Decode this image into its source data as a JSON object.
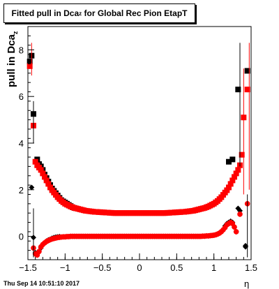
{
  "title": {
    "main": "Fitted pull in Dca",
    "sub": "z",
    "rest": " for Global Rec Pion EtapT"
  },
  "ylabel": {
    "main": "pull in Dca",
    "sub": "z"
  },
  "xlabel": "η",
  "footer": "Thu Sep 14 10:51:10 2017",
  "chart_data": {
    "type": "scatter",
    "xlim": [
      -1.5,
      1.5
    ],
    "ylim": [
      -1.0,
      9.0
    ],
    "xticks": [
      -1.5,
      -1,
      -0.5,
      0,
      0.5,
      1,
      1.5
    ],
    "xtick_labels": [
      "−1.5",
      "−1",
      "−0.5",
      "0",
      "0.5",
      "1",
      "1.5"
    ],
    "yticks": [
      0,
      2,
      4,
      6,
      8
    ],
    "ytick_labels": [
      "0",
      "2",
      "4",
      "6",
      "8"
    ],
    "grid": false,
    "series": [
      {
        "color": "#000000",
        "marker": "square",
        "points": [
          [
            -1.475,
            7.5
          ],
          [
            -1.45,
            7.75
          ],
          [
            -1.425,
            5.25
          ],
          [
            -1.375,
            3.3
          ],
          [
            -1.35,
            3.1
          ],
          [
            -1.325,
            3.0
          ],
          [
            -1.3,
            2.85
          ],
          [
            -1.275,
            2.65
          ],
          [
            -1.25,
            2.5
          ],
          [
            -1.225,
            2.35
          ],
          [
            -1.2,
            2.2
          ],
          [
            -1.175,
            2.05
          ],
          [
            -1.15,
            1.95
          ],
          [
            -1.125,
            1.85
          ],
          [
            -1.1,
            1.75
          ],
          [
            -1.075,
            1.65
          ],
          [
            -1.05,
            1.55
          ],
          [
            -1.025,
            1.5
          ],
          [
            -1.0,
            1.45
          ],
          [
            -0.975,
            1.4
          ],
          [
            -0.95,
            1.35
          ],
          [
            -0.925,
            1.3
          ],
          [
            -0.9,
            1.25
          ],
          [
            -0.875,
            1.22
          ],
          [
            -0.85,
            1.2
          ],
          [
            1.2,
            3.2
          ],
          [
            1.25,
            3.3
          ],
          [
            1.325,
            6.3
          ],
          [
            1.45,
            7.1
          ]
        ]
      },
      {
        "color": "#000000",
        "marker": "diamond",
        "points": [
          [
            -1.45,
            2.1
          ],
          [
            -1.425,
            -0.05
          ],
          [
            -1.4,
            -0.7
          ],
          [
            -1.375,
            -0.75
          ],
          [
            -1.325,
            -0.5
          ],
          [
            -1.3,
            -0.35
          ],
          [
            -1.275,
            -0.28
          ],
          [
            -1.25,
            -0.2
          ],
          [
            -1.225,
            -0.15
          ],
          [
            -1.2,
            -0.12
          ],
          [
            -1.175,
            -0.08
          ],
          [
            -1.15,
            -0.05
          ],
          [
            -1.125,
            -0.03
          ],
          [
            -1.1,
            -0.02
          ],
          [
            -1.075,
            -0.01
          ],
          [
            1.125,
            0.3
          ],
          [
            1.15,
            0.45
          ],
          [
            1.175,
            0.55
          ],
          [
            1.2,
            0.6
          ],
          [
            1.225,
            0.65
          ],
          [
            1.25,
            0.6
          ],
          [
            1.275,
            0.4
          ],
          [
            1.3,
            0.2
          ],
          [
            1.325,
            1.2
          ],
          [
            1.35,
            1.1
          ],
          [
            1.425,
            -0.45
          ],
          [
            1.425,
            -0.4
          ]
        ]
      },
      {
        "color": "#ff0000",
        "marker": "square",
        "error_bars": true,
        "points": [
          [
            -1.475,
            7.3
          ],
          [
            -1.425,
            4.75
          ],
          [
            -1.4,
            3.2
          ],
          [
            -1.375,
            3.05
          ],
          [
            -1.35,
            2.95
          ],
          [
            -1.325,
            2.85
          ],
          [
            -1.3,
            2.7
          ],
          [
            -1.275,
            2.55
          ],
          [
            -1.25,
            2.4
          ],
          [
            -1.225,
            2.25
          ],
          [
            -1.2,
            2.1
          ],
          [
            -1.175,
            1.98
          ],
          [
            -1.15,
            1.88
          ],
          [
            -1.125,
            1.78
          ],
          [
            -1.1,
            1.68
          ],
          [
            -1.075,
            1.6
          ],
          [
            -1.05,
            1.52
          ],
          [
            -1.025,
            1.46
          ],
          [
            -1.0,
            1.4
          ],
          [
            -0.975,
            1.36
          ],
          [
            -0.95,
            1.32
          ],
          [
            -0.925,
            1.28
          ],
          [
            -0.9,
            1.25
          ],
          [
            -0.875,
            1.22
          ],
          [
            -0.85,
            1.2
          ],
          [
            -0.825,
            1.18
          ],
          [
            -0.8,
            1.16
          ],
          [
            -0.775,
            1.14
          ],
          [
            -0.75,
            1.12
          ],
          [
            -0.725,
            1.1
          ],
          [
            -0.7,
            1.09
          ],
          [
            -0.675,
            1.08
          ],
          [
            -0.65,
            1.07
          ],
          [
            -0.625,
            1.06
          ],
          [
            -0.6,
            1.05
          ],
          [
            -0.575,
            1.05
          ],
          [
            -0.55,
            1.04
          ],
          [
            -0.525,
            1.04
          ],
          [
            -0.5,
            1.03
          ],
          [
            -0.475,
            1.03
          ],
          [
            -0.45,
            1.02
          ],
          [
            -0.425,
            1.02
          ],
          [
            -0.4,
            1.01
          ],
          [
            -0.375,
            1.01
          ],
          [
            -0.35,
            1.0
          ],
          [
            -0.325,
            1.0
          ],
          [
            -0.3,
            1.0
          ],
          [
            -0.275,
            1.0
          ],
          [
            -0.25,
            1.0
          ],
          [
            -0.225,
            1.0
          ],
          [
            -0.2,
            1.0
          ],
          [
            -0.175,
            1.0
          ],
          [
            -0.15,
            1.0
          ],
          [
            -0.125,
            1.0
          ],
          [
            -0.1,
            1.0
          ],
          [
            -0.075,
            1.0
          ],
          [
            -0.05,
            1.0
          ],
          [
            -0.025,
            1.0
          ],
          [
            0.0,
            1.0
          ],
          [
            0.025,
            1.0
          ],
          [
            0.05,
            1.0
          ],
          [
            0.075,
            1.0
          ],
          [
            0.1,
            1.0
          ],
          [
            0.125,
            1.0
          ],
          [
            0.15,
            1.0
          ],
          [
            0.175,
            1.0
          ],
          [
            0.2,
            1.0
          ],
          [
            0.225,
            1.0
          ],
          [
            0.25,
            1.0
          ],
          [
            0.275,
            1.0
          ],
          [
            0.3,
            1.0
          ],
          [
            0.325,
            1.0
          ],
          [
            0.35,
            1.0
          ],
          [
            0.375,
            1.01
          ],
          [
            0.4,
            1.01
          ],
          [
            0.425,
            1.02
          ],
          [
            0.45,
            1.02
          ],
          [
            0.475,
            1.03
          ],
          [
            0.5,
            1.03
          ],
          [
            0.525,
            1.04
          ],
          [
            0.55,
            1.04
          ],
          [
            0.575,
            1.05
          ],
          [
            0.6,
            1.05
          ],
          [
            0.625,
            1.06
          ],
          [
            0.65,
            1.07
          ],
          [
            0.675,
            1.08
          ],
          [
            0.7,
            1.09
          ],
          [
            0.725,
            1.1
          ],
          [
            0.75,
            1.12
          ],
          [
            0.775,
            1.14
          ],
          [
            0.8,
            1.16
          ],
          [
            0.825,
            1.18
          ],
          [
            0.85,
            1.2
          ],
          [
            0.875,
            1.22
          ],
          [
            0.9,
            1.25
          ],
          [
            0.925,
            1.28
          ],
          [
            0.95,
            1.32
          ],
          [
            0.975,
            1.36
          ],
          [
            1.0,
            1.4
          ],
          [
            1.025,
            1.46
          ],
          [
            1.05,
            1.52
          ],
          [
            1.075,
            1.6
          ],
          [
            1.1,
            1.68
          ],
          [
            1.125,
            1.78
          ],
          [
            1.15,
            1.88
          ],
          [
            1.175,
            1.98
          ],
          [
            1.2,
            2.1
          ],
          [
            1.225,
            2.25
          ],
          [
            1.25,
            2.4
          ],
          [
            1.275,
            2.55
          ],
          [
            1.3,
            2.7
          ],
          [
            1.325,
            2.85
          ],
          [
            1.35,
            3.05
          ],
          [
            1.375,
            3.5
          ],
          [
            1.4,
            5.1
          ],
          [
            1.45,
            6.3
          ]
        ]
      },
      {
        "color": "#ff0000",
        "marker": "circle",
        "error_bars": true,
        "points": [
          [
            -1.425,
            -0.5
          ],
          [
            -1.4,
            -0.75
          ],
          [
            -1.375,
            -0.8
          ],
          [
            -1.35,
            -0.65
          ],
          [
            -1.325,
            -0.45
          ],
          [
            -1.3,
            -0.35
          ],
          [
            -1.275,
            -0.28
          ],
          [
            -1.25,
            -0.22
          ],
          [
            -1.225,
            -0.18
          ],
          [
            -1.2,
            -0.14
          ],
          [
            -1.175,
            -0.11
          ],
          [
            -1.15,
            -0.09
          ],
          [
            -1.125,
            -0.07
          ],
          [
            -1.1,
            -0.05
          ],
          [
            -1.075,
            -0.04
          ],
          [
            -1.05,
            -0.03
          ],
          [
            -1.025,
            -0.02
          ],
          [
            -1.0,
            -0.02
          ],
          [
            -0.975,
            -0.01
          ],
          [
            -0.95,
            -0.01
          ],
          [
            -0.925,
            0.0
          ],
          [
            -0.9,
            0.0
          ],
          [
            -0.875,
            0.0
          ],
          [
            -0.85,
            0.0
          ],
          [
            -0.825,
            0.0
          ],
          [
            -0.8,
            0.0
          ],
          [
            -0.775,
            0.0
          ],
          [
            -0.75,
            0.0
          ],
          [
            -0.725,
            0.0
          ],
          [
            -0.7,
            0.0
          ],
          [
            -0.675,
            0.0
          ],
          [
            -0.65,
            0.0
          ],
          [
            -0.625,
            0.0
          ],
          [
            -0.6,
            0.0
          ],
          [
            -0.575,
            0.0
          ],
          [
            -0.55,
            0.0
          ],
          [
            -0.525,
            0.0
          ],
          [
            -0.5,
            0.0
          ],
          [
            -0.475,
            0.0
          ],
          [
            -0.45,
            0.0
          ],
          [
            -0.425,
            0.0
          ],
          [
            -0.4,
            0.0
          ],
          [
            -0.375,
            0.0
          ],
          [
            -0.35,
            0.0
          ],
          [
            -0.325,
            0.0
          ],
          [
            -0.3,
            0.0
          ],
          [
            -0.275,
            0.0
          ],
          [
            -0.25,
            0.0
          ],
          [
            -0.225,
            0.0
          ],
          [
            -0.2,
            0.0
          ],
          [
            -0.175,
            0.0
          ],
          [
            -0.15,
            0.0
          ],
          [
            -0.125,
            0.0
          ],
          [
            -0.1,
            0.0
          ],
          [
            -0.075,
            0.0
          ],
          [
            -0.05,
            0.0
          ],
          [
            -0.025,
            0.0
          ],
          [
            0.0,
            0.0
          ],
          [
            0.025,
            0.0
          ],
          [
            0.05,
            0.0
          ],
          [
            0.075,
            0.0
          ],
          [
            0.1,
            0.0
          ],
          [
            0.125,
            0.0
          ],
          [
            0.15,
            0.0
          ],
          [
            0.175,
            0.0
          ],
          [
            0.2,
            0.0
          ],
          [
            0.225,
            0.0
          ],
          [
            0.25,
            0.0
          ],
          [
            0.275,
            0.0
          ],
          [
            0.3,
            0.0
          ],
          [
            0.325,
            0.0
          ],
          [
            0.35,
            0.0
          ],
          [
            0.375,
            0.0
          ],
          [
            0.4,
            0.0
          ],
          [
            0.425,
            0.0
          ],
          [
            0.45,
            0.0
          ],
          [
            0.475,
            0.0
          ],
          [
            0.5,
            0.0
          ],
          [
            0.525,
            0.0
          ],
          [
            0.55,
            0.0
          ],
          [
            0.575,
            0.0
          ],
          [
            0.6,
            0.0
          ],
          [
            0.625,
            0.0
          ],
          [
            0.65,
            0.0
          ],
          [
            0.675,
            0.0
          ],
          [
            0.7,
            0.0
          ],
          [
            0.725,
            0.0
          ],
          [
            0.75,
            0.0
          ],
          [
            0.775,
            0.0
          ],
          [
            0.8,
            0.0
          ],
          [
            0.825,
            0.0
          ],
          [
            0.85,
            0.01
          ],
          [
            0.875,
            0.01
          ],
          [
            0.9,
            0.02
          ],
          [
            0.925,
            0.02
          ],
          [
            0.95,
            0.03
          ],
          [
            0.975,
            0.04
          ],
          [
            1.0,
            0.05
          ],
          [
            1.025,
            0.07
          ],
          [
            1.05,
            0.1
          ],
          [
            1.075,
            0.14
          ],
          [
            1.1,
            0.2
          ],
          [
            1.125,
            0.28
          ],
          [
            1.15,
            0.38
          ],
          [
            1.175,
            0.5
          ],
          [
            1.2,
            0.55
          ],
          [
            1.225,
            0.6
          ],
          [
            1.25,
            0.55
          ],
          [
            1.275,
            0.4
          ],
          [
            1.3,
            0.2
          ],
          [
            1.35,
            0.95
          ],
          [
            1.45,
            1.4
          ]
        ]
      }
    ]
  }
}
